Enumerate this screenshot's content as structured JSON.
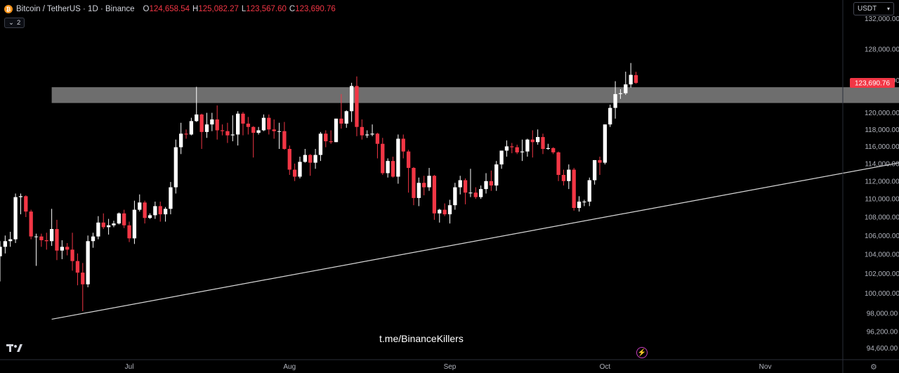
{
  "header": {
    "coin_icon": "bitcoin-icon",
    "title": "Bitcoin / TetherUS · 1D · Binance",
    "o_label": "O",
    "o_value": "124,658.54",
    "h_label": "H",
    "h_value": "125,082.27",
    "l_label": "L",
    "l_value": "123,567.60",
    "c_label": "C",
    "c_value": "123,690.76",
    "indicators_count": "2"
  },
  "currency_selector": {
    "value": "USDT"
  },
  "watermark": "t.me/BinanceKillers",
  "icons": {
    "logo": "tradingview-logo-icon",
    "alert": "lightning-icon",
    "settings": "gear-icon"
  },
  "colors": {
    "up": "#ffffff",
    "down": "#f23645",
    "background": "#000000",
    "zone": "#8a8a8a",
    "price_badge": "#f23645"
  },
  "chart_data": {
    "type": "candlestick",
    "symbol": "BTCUSDT",
    "interval": "1D",
    "yaxis": {
      "scale": "log",
      "range": [
        93500,
        134500
      ],
      "ticks": [
        132000,
        128000,
        124000,
        120000,
        118000,
        116000,
        114000,
        112000,
        110000,
        108000,
        106000,
        104000,
        102000,
        100000,
        98000,
        96200,
        94600
      ],
      "tick_labels": [
        "132,000.00",
        "128,000.00",
        "124,000.00",
        "120,000.00",
        "118,000.00",
        "116,000.00",
        "114,000.00",
        "112,000.00",
        "110,000.00",
        "108,000.00",
        "106,000.00",
        "104,000.00",
        "102,000.00",
        "100,000.00",
        "98,000.00",
        "96,200.00",
        "94,600.00"
      ]
    },
    "xaxis": {
      "range": [
        "2025-06-06",
        "2025-11-16"
      ],
      "ticks": [
        {
          "date": "2025-07-01",
          "label": "Jul"
        },
        {
          "date": "2025-08-01",
          "label": "Aug"
        },
        {
          "date": "2025-09-01",
          "label": "Sep"
        },
        {
          "date": "2025-10-01",
          "label": "Oct"
        },
        {
          "date": "2025-11-01",
          "label": "Nov"
        }
      ]
    },
    "last_price": 123690.76,
    "last_price_label": "123,690.76",
    "resistance_zone": {
      "low": 121200,
      "high": 123150,
      "start": "2025-06-16",
      "end": "2025-11-27"
    },
    "trendline": [
      {
        "date": "2025-06-16",
        "price": 97400
      },
      {
        "date": "2025-11-27",
        "price": 114100
      }
    ],
    "candles": [
      {
        "date": "2025-06-06",
        "o": 103800,
        "h": 105400,
        "l": 101200,
        "c": 104800
      },
      {
        "date": "2025-06-07",
        "o": 104800,
        "h": 106000,
        "l": 104100,
        "c": 105400
      },
      {
        "date": "2025-06-08",
        "o": 105400,
        "h": 106400,
        "l": 104800,
        "c": 105600
      },
      {
        "date": "2025-06-09",
        "o": 105600,
        "h": 110600,
        "l": 105200,
        "c": 110200
      },
      {
        "date": "2025-06-10",
        "o": 110200,
        "h": 110600,
        "l": 108300,
        "c": 110300
      },
      {
        "date": "2025-06-11",
        "o": 110300,
        "h": 110400,
        "l": 108000,
        "c": 108600
      },
      {
        "date": "2025-06-12",
        "o": 108600,
        "h": 108800,
        "l": 105600,
        "c": 105900
      },
      {
        "date": "2025-06-13",
        "o": 105900,
        "h": 106200,
        "l": 102800,
        "c": 105900
      },
      {
        "date": "2025-06-14",
        "o": 105900,
        "h": 106200,
        "l": 104800,
        "c": 105500
      },
      {
        "date": "2025-06-15",
        "o": 105500,
        "h": 106300,
        "l": 104500,
        "c": 105400
      },
      {
        "date": "2025-06-16",
        "o": 105400,
        "h": 108900,
        "l": 104900,
        "c": 106700
      },
      {
        "date": "2025-06-17",
        "o": 106700,
        "h": 107700,
        "l": 103400,
        "c": 104400
      },
      {
        "date": "2025-06-18",
        "o": 104400,
        "h": 105500,
        "l": 103500,
        "c": 104800
      },
      {
        "date": "2025-06-19",
        "o": 104800,
        "h": 105200,
        "l": 103900,
        "c": 104500
      },
      {
        "date": "2025-06-20",
        "o": 104500,
        "h": 106300,
        "l": 102300,
        "c": 103300
      },
      {
        "date": "2025-06-21",
        "o": 103300,
        "h": 104100,
        "l": 100800,
        "c": 102100
      },
      {
        "date": "2025-06-22",
        "o": 102100,
        "h": 103100,
        "l": 98200,
        "c": 100900
      },
      {
        "date": "2025-06-23",
        "o": 100900,
        "h": 106000,
        "l": 100600,
        "c": 105400
      },
      {
        "date": "2025-06-24",
        "o": 105400,
        "h": 106300,
        "l": 104700,
        "c": 105900
      },
      {
        "date": "2025-06-25",
        "o": 105900,
        "h": 108100,
        "l": 105600,
        "c": 107400
      },
      {
        "date": "2025-06-26",
        "o": 107400,
        "h": 108400,
        "l": 106700,
        "c": 106900
      },
      {
        "date": "2025-06-27",
        "o": 106900,
        "h": 107800,
        "l": 106100,
        "c": 107100
      },
      {
        "date": "2025-06-28",
        "o": 107100,
        "h": 107600,
        "l": 106900,
        "c": 107300
      },
      {
        "date": "2025-06-29",
        "o": 107300,
        "h": 108500,
        "l": 107200,
        "c": 108400
      },
      {
        "date": "2025-06-30",
        "o": 108400,
        "h": 108800,
        "l": 106800,
        "c": 107100
      },
      {
        "date": "2025-07-01",
        "o": 107100,
        "h": 107500,
        "l": 105300,
        "c": 105700
      },
      {
        "date": "2025-07-02",
        "o": 105700,
        "h": 109800,
        "l": 105100,
        "c": 108800
      },
      {
        "date": "2025-07-03",
        "o": 108800,
        "h": 110500,
        "l": 108600,
        "c": 109600
      },
      {
        "date": "2025-07-04",
        "o": 109600,
        "h": 109800,
        "l": 107300,
        "c": 107900
      },
      {
        "date": "2025-07-05",
        "o": 107900,
        "h": 108400,
        "l": 107800,
        "c": 108200
      },
      {
        "date": "2025-07-06",
        "o": 108200,
        "h": 109700,
        "l": 107800,
        "c": 109200
      },
      {
        "date": "2025-07-07",
        "o": 109200,
        "h": 109700,
        "l": 107500,
        "c": 108300
      },
      {
        "date": "2025-07-08",
        "o": 108300,
        "h": 109100,
        "l": 107500,
        "c": 108900
      },
      {
        "date": "2025-07-09",
        "o": 108900,
        "h": 111900,
        "l": 108300,
        "c": 111300
      },
      {
        "date": "2025-07-10",
        "o": 111300,
        "h": 116800,
        "l": 110600,
        "c": 115900
      },
      {
        "date": "2025-07-11",
        "o": 115900,
        "h": 118800,
        "l": 115100,
        "c": 117500
      },
      {
        "date": "2025-07-12",
        "o": 117500,
        "h": 118000,
        "l": 116900,
        "c": 117400
      },
      {
        "date": "2025-07-13",
        "o": 117400,
        "h": 119400,
        "l": 117300,
        "c": 119000
      },
      {
        "date": "2025-07-14",
        "o": 119000,
        "h": 123200,
        "l": 118900,
        "c": 119800
      },
      {
        "date": "2025-07-15",
        "o": 119800,
        "h": 119900,
        "l": 115700,
        "c": 117700
      },
      {
        "date": "2025-07-16",
        "o": 117700,
        "h": 120000,
        "l": 117000,
        "c": 118600
      },
      {
        "date": "2025-07-17",
        "o": 118600,
        "h": 120000,
        "l": 117800,
        "c": 119200
      },
      {
        "date": "2025-07-18",
        "o": 119200,
        "h": 120900,
        "l": 116800,
        "c": 117900
      },
      {
        "date": "2025-07-19",
        "o": 117900,
        "h": 118600,
        "l": 117300,
        "c": 117800
      },
      {
        "date": "2025-07-20",
        "o": 117800,
        "h": 118800,
        "l": 116400,
        "c": 117300
      },
      {
        "date": "2025-07-21",
        "o": 117300,
        "h": 119700,
        "l": 116600,
        "c": 117400
      },
      {
        "date": "2025-07-22",
        "o": 117400,
        "h": 120200,
        "l": 116100,
        "c": 119900
      },
      {
        "date": "2025-07-23",
        "o": 119900,
        "h": 120100,
        "l": 117300,
        "c": 118700
      },
      {
        "date": "2025-07-24",
        "o": 118700,
        "h": 119500,
        "l": 117400,
        "c": 118300
      },
      {
        "date": "2025-07-25",
        "o": 118300,
        "h": 118400,
        "l": 114700,
        "c": 117600
      },
      {
        "date": "2025-07-26",
        "o": 117600,
        "h": 118300,
        "l": 117400,
        "c": 117900
      },
      {
        "date": "2025-07-27",
        "o": 117900,
        "h": 119800,
        "l": 117800,
        "c": 119400
      },
      {
        "date": "2025-07-28",
        "o": 119400,
        "h": 119800,
        "l": 117400,
        "c": 118000
      },
      {
        "date": "2025-07-29",
        "o": 118000,
        "h": 119200,
        "l": 116900,
        "c": 117800
      },
      {
        "date": "2025-07-30",
        "o": 117800,
        "h": 118800,
        "l": 115700,
        "c": 117800
      },
      {
        "date": "2025-07-31",
        "o": 117800,
        "h": 118900,
        "l": 115600,
        "c": 115700
      },
      {
        "date": "2025-08-01",
        "o": 115700,
        "h": 116100,
        "l": 112700,
        "c": 113300
      },
      {
        "date": "2025-08-02",
        "o": 113300,
        "h": 114000,
        "l": 112000,
        "c": 112500
      },
      {
        "date": "2025-08-03",
        "o": 112500,
        "h": 114800,
        "l": 112300,
        "c": 114200
      },
      {
        "date": "2025-08-04",
        "o": 114200,
        "h": 115700,
        "l": 114100,
        "c": 115000
      },
      {
        "date": "2025-08-05",
        "o": 115000,
        "h": 115100,
        "l": 112600,
        "c": 114100
      },
      {
        "date": "2025-08-06",
        "o": 114100,
        "h": 115700,
        "l": 113400,
        "c": 115000
      },
      {
        "date": "2025-08-07",
        "o": 115000,
        "h": 117700,
        "l": 114300,
        "c": 117500
      },
      {
        "date": "2025-08-08",
        "o": 117500,
        "h": 117900,
        "l": 115900,
        "c": 116600
      },
      {
        "date": "2025-08-09",
        "o": 116600,
        "h": 117900,
        "l": 116300,
        "c": 116500
      },
      {
        "date": "2025-08-10",
        "o": 116500,
        "h": 119300,
        "l": 116500,
        "c": 119300
      },
      {
        "date": "2025-08-11",
        "o": 119300,
        "h": 122300,
        "l": 118100,
        "c": 118700
      },
      {
        "date": "2025-08-12",
        "o": 118700,
        "h": 120300,
        "l": 118200,
        "c": 120200
      },
      {
        "date": "2025-08-13",
        "o": 120200,
        "h": 123700,
        "l": 118900,
        "c": 123300
      },
      {
        "date": "2025-08-14",
        "o": 123300,
        "h": 124500,
        "l": 117200,
        "c": 118300
      },
      {
        "date": "2025-08-15",
        "o": 118300,
        "h": 119200,
        "l": 116800,
        "c": 117300
      },
      {
        "date": "2025-08-16",
        "o": 117300,
        "h": 117900,
        "l": 117000,
        "c": 117400
      },
      {
        "date": "2025-08-17",
        "o": 117400,
        "h": 118600,
        "l": 117200,
        "c": 117500
      },
      {
        "date": "2025-08-18",
        "o": 117500,
        "h": 117600,
        "l": 114600,
        "c": 116300
      },
      {
        "date": "2025-08-19",
        "o": 116300,
        "h": 117000,
        "l": 112700,
        "c": 112900
      },
      {
        "date": "2025-08-20",
        "o": 112900,
        "h": 114600,
        "l": 112400,
        "c": 114300
      },
      {
        "date": "2025-08-21",
        "o": 114300,
        "h": 114800,
        "l": 112400,
        "c": 112500
      },
      {
        "date": "2025-08-22",
        "o": 112500,
        "h": 117400,
        "l": 111700,
        "c": 116900
      },
      {
        "date": "2025-08-23",
        "o": 116900,
        "h": 117400,
        "l": 114600,
        "c": 115400
      },
      {
        "date": "2025-08-24",
        "o": 115400,
        "h": 115600,
        "l": 110700,
        "c": 113500
      },
      {
        "date": "2025-08-25",
        "o": 113500,
        "h": 113600,
        "l": 109300,
        "c": 110100
      },
      {
        "date": "2025-08-26",
        "o": 110100,
        "h": 112400,
        "l": 109200,
        "c": 111800
      },
      {
        "date": "2025-08-27",
        "o": 111800,
        "h": 112600,
        "l": 110400,
        "c": 111300
      },
      {
        "date": "2025-08-28",
        "o": 111300,
        "h": 113500,
        "l": 110900,
        "c": 112600
      },
      {
        "date": "2025-08-29",
        "o": 112600,
        "h": 112700,
        "l": 107700,
        "c": 108400
      },
      {
        "date": "2025-08-30",
        "o": 108400,
        "h": 108900,
        "l": 107400,
        "c": 108800
      },
      {
        "date": "2025-08-31",
        "o": 108800,
        "h": 109500,
        "l": 108100,
        "c": 108300
      },
      {
        "date": "2025-09-01",
        "o": 108300,
        "h": 109900,
        "l": 107300,
        "c": 109300
      },
      {
        "date": "2025-09-02",
        "o": 109300,
        "h": 111800,
        "l": 108800,
        "c": 111300
      },
      {
        "date": "2025-09-03",
        "o": 111300,
        "h": 112600,
        "l": 110500,
        "c": 112100
      },
      {
        "date": "2025-09-04",
        "o": 112100,
        "h": 112300,
        "l": 109400,
        "c": 110700
      },
      {
        "date": "2025-09-05",
        "o": 110700,
        "h": 113400,
        "l": 110200,
        "c": 110700
      },
      {
        "date": "2025-09-06",
        "o": 110700,
        "h": 111300,
        "l": 110000,
        "c": 110200
      },
      {
        "date": "2025-09-07",
        "o": 110200,
        "h": 111500,
        "l": 110000,
        "c": 111100
      },
      {
        "date": "2025-09-08",
        "o": 111100,
        "h": 112900,
        "l": 110600,
        "c": 112000
      },
      {
        "date": "2025-09-09",
        "o": 112000,
        "h": 113200,
        "l": 110900,
        "c": 111500
      },
      {
        "date": "2025-09-10",
        "o": 111500,
        "h": 114300,
        "l": 110900,
        "c": 113900
      },
      {
        "date": "2025-09-11",
        "o": 113900,
        "h": 115500,
        "l": 113400,
        "c": 115500
      },
      {
        "date": "2025-09-12",
        "o": 115500,
        "h": 116700,
        "l": 114800,
        "c": 116000
      },
      {
        "date": "2025-09-13",
        "o": 116000,
        "h": 116400,
        "l": 115200,
        "c": 115900
      },
      {
        "date": "2025-09-14",
        "o": 115900,
        "h": 116200,
        "l": 115100,
        "c": 115300
      },
      {
        "date": "2025-09-15",
        "o": 115300,
        "h": 116800,
        "l": 114300,
        "c": 115400
      },
      {
        "date": "2025-09-16",
        "o": 115400,
        "h": 116900,
        "l": 114800,
        "c": 116800
      },
      {
        "date": "2025-09-17",
        "o": 116800,
        "h": 117900,
        "l": 114700,
        "c": 116500
      },
      {
        "date": "2025-09-18",
        "o": 116500,
        "h": 118000,
        "l": 116200,
        "c": 117100
      },
      {
        "date": "2025-09-19",
        "o": 117100,
        "h": 117500,
        "l": 115100,
        "c": 115700
      },
      {
        "date": "2025-09-20",
        "o": 115700,
        "h": 116300,
        "l": 115600,
        "c": 115800
      },
      {
        "date": "2025-09-21",
        "o": 115800,
        "h": 115900,
        "l": 115100,
        "c": 115300
      },
      {
        "date": "2025-09-22",
        "o": 115300,
        "h": 115400,
        "l": 112000,
        "c": 112700
      },
      {
        "date": "2025-09-23",
        "o": 112700,
        "h": 113300,
        "l": 111500,
        "c": 112000
      },
      {
        "date": "2025-09-24",
        "o": 112000,
        "h": 113900,
        "l": 111100,
        "c": 113300
      },
      {
        "date": "2025-09-25",
        "o": 113300,
        "h": 113500,
        "l": 108700,
        "c": 109000
      },
      {
        "date": "2025-09-26",
        "o": 109000,
        "h": 110300,
        "l": 108600,
        "c": 109700
      },
      {
        "date": "2025-09-27",
        "o": 109700,
        "h": 109900,
        "l": 109200,
        "c": 109700
      },
      {
        "date": "2025-09-28",
        "o": 109700,
        "h": 112400,
        "l": 109200,
        "c": 112100
      },
      {
        "date": "2025-09-29",
        "o": 112100,
        "h": 114400,
        "l": 111600,
        "c": 114400
      },
      {
        "date": "2025-09-30",
        "o": 114400,
        "h": 114800,
        "l": 112700,
        "c": 114100
      },
      {
        "date": "2025-10-01",
        "o": 114100,
        "h": 118600,
        "l": 113900,
        "c": 118600
      },
      {
        "date": "2025-10-02",
        "o": 118600,
        "h": 121000,
        "l": 118300,
        "c": 120600
      },
      {
        "date": "2025-10-03",
        "o": 120600,
        "h": 123900,
        "l": 119300,
        "c": 122300
      },
      {
        "date": "2025-10-04",
        "o": 122300,
        "h": 122900,
        "l": 121700,
        "c": 122400
      },
      {
        "date": "2025-10-05",
        "o": 122400,
        "h": 125100,
        "l": 122200,
        "c": 123500
      },
      {
        "date": "2025-10-06",
        "o": 123500,
        "h": 126200,
        "l": 123100,
        "c": 124700
      },
      {
        "date": "2025-10-07",
        "o": 124658.54,
        "h": 125082.27,
        "l": 123567.6,
        "c": 123690.76
      }
    ]
  }
}
